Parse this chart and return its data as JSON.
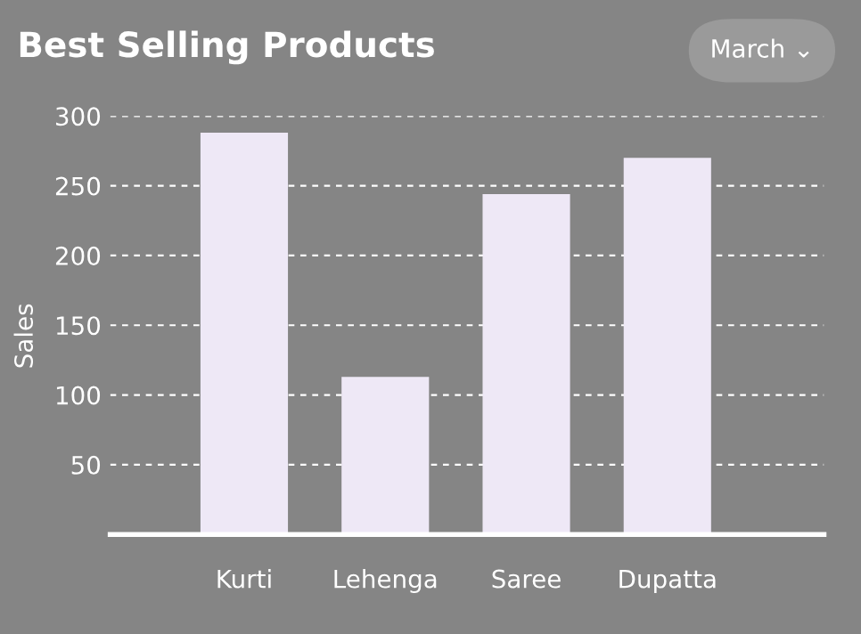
{
  "chart_data": {
    "type": "bar",
    "title": "Best Selling Products",
    "ylabel": "Sales",
    "categories": [
      "Kurti",
      "Lehenga",
      "Saree",
      "Dupatta"
    ],
    "values": [
      288,
      113,
      244,
      270
    ],
    "color": "#eee8f6",
    "ylim": [
      0,
      300
    ],
    "yticks": [
      50,
      100,
      150,
      200,
      250,
      300
    ],
    "grid": "y",
    "annotations": [
      "March ⌄"
    ]
  }
}
